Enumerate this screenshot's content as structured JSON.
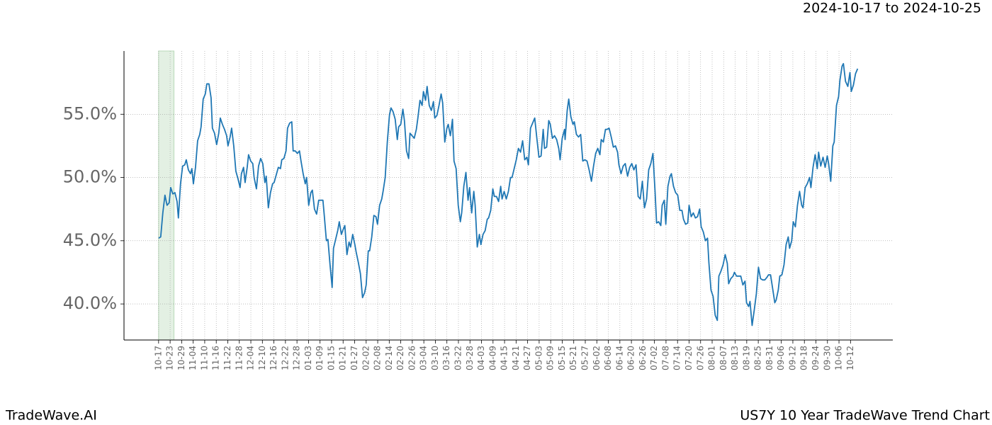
{
  "chart_data": {
    "type": "line",
    "title": "US7Y 10 Year TradeWave Trend Chart",
    "date_range": "2024-10-17 to 2024-10-25",
    "brand": "TradeWave.AI",
    "color": "#1f77b4",
    "shaded_span": [
      0,
      8
    ],
    "shaded_color": "#e3f0e3",
    "grid": true,
    "xlim": [
      -18,
      382
    ],
    "ylim": [
      37.15,
      60
    ],
    "yticks": [
      {
        "value": 40,
        "label": "40.0%"
      },
      {
        "value": 45,
        "label": "45.0%"
      },
      {
        "value": 50,
        "label": "50.0%"
      },
      {
        "value": 55,
        "label": "55.0%"
      }
    ],
    "xticks": [
      {
        "value": 0,
        "label": "10-17"
      },
      {
        "value": 6,
        "label": "10-23"
      },
      {
        "value": 12,
        "label": "10-29"
      },
      {
        "value": 18,
        "label": "11-04"
      },
      {
        "value": 24,
        "label": "11-10"
      },
      {
        "value": 30,
        "label": "11-16"
      },
      {
        "value": 36,
        "label": "11-22"
      },
      {
        "value": 42,
        "label": "11-28"
      },
      {
        "value": 48,
        "label": "12-04"
      },
      {
        "value": 54,
        "label": "12-10"
      },
      {
        "value": 60,
        "label": "12-16"
      },
      {
        "value": 66,
        "label": "12-22"
      },
      {
        "value": 72,
        "label": "12-28"
      },
      {
        "value": 78,
        "label": "01-03"
      },
      {
        "value": 84,
        "label": "01-09"
      },
      {
        "value": 90,
        "label": "01-15"
      },
      {
        "value": 96,
        "label": "01-21"
      },
      {
        "value": 102,
        "label": "01-27"
      },
      {
        "value": 108,
        "label": "02-02"
      },
      {
        "value": 114,
        "label": "02-08"
      },
      {
        "value": 120,
        "label": "02-14"
      },
      {
        "value": 126,
        "label": "02-20"
      },
      {
        "value": 132,
        "label": "02-26"
      },
      {
        "value": 138,
        "label": "03-04"
      },
      {
        "value": 144,
        "label": "03-10"
      },
      {
        "value": 150,
        "label": "03-16"
      },
      {
        "value": 156,
        "label": "03-22"
      },
      {
        "value": 162,
        "label": "03-28"
      },
      {
        "value": 168,
        "label": "04-03"
      },
      {
        "value": 174,
        "label": "04-09"
      },
      {
        "value": 180,
        "label": "04-15"
      },
      {
        "value": 186,
        "label": "04-21"
      },
      {
        "value": 192,
        "label": "04-27"
      },
      {
        "value": 198,
        "label": "05-03"
      },
      {
        "value": 204,
        "label": "05-09"
      },
      {
        "value": 210,
        "label": "05-15"
      },
      {
        "value": 216,
        "label": "05-21"
      },
      {
        "value": 222,
        "label": "05-27"
      },
      {
        "value": 228,
        "label": "06-02"
      },
      {
        "value": 234,
        "label": "06-08"
      },
      {
        "value": 240,
        "label": "06-14"
      },
      {
        "value": 246,
        "label": "06-20"
      },
      {
        "value": 252,
        "label": "06-26"
      },
      {
        "value": 258,
        "label": "07-02"
      },
      {
        "value": 264,
        "label": "07-08"
      },
      {
        "value": 270,
        "label": "07-14"
      },
      {
        "value": 276,
        "label": "07-20"
      },
      {
        "value": 282,
        "label": "07-26"
      },
      {
        "value": 288,
        "label": "08-01"
      },
      {
        "value": 294,
        "label": "08-07"
      },
      {
        "value": 300,
        "label": "08-13"
      },
      {
        "value": 306,
        "label": "08-19"
      },
      {
        "value": 312,
        "label": "08-25"
      },
      {
        "value": 318,
        "label": "08-31"
      },
      {
        "value": 324,
        "label": "09-06"
      },
      {
        "value": 330,
        "label": "09-12"
      },
      {
        "value": 336,
        "label": "09-18"
      },
      {
        "value": 342,
        "label": "09-24"
      },
      {
        "value": 348,
        "label": "09-30"
      },
      {
        "value": 354,
        "label": "10-06"
      },
      {
        "value": 360,
        "label": "10-12"
      }
    ],
    "x": [
      0,
      1.1,
      2.2,
      3.3,
      4.4,
      5.5,
      6.3,
      7.4,
      8.5,
      9.6,
      10.3,
      11.4,
      12.5,
      13.6,
      14.4,
      15.5,
      16.6,
      17.3,
      18.1,
      19.2,
      20.3,
      21.4,
      22.1,
      23.2,
      24.3,
      25.1,
      26.2,
      27.3,
      28.0,
      29.1,
      30.2,
      31.3,
      32.1,
      33.2,
      34.3,
      35.4,
      36.1,
      37.2,
      38.0,
      39.1,
      40.2,
      41.3,
      42.4,
      43.1,
      44.2,
      45.0,
      46.1,
      46.8,
      47.9,
      49.0,
      49.7,
      50.9,
      52.0,
      53.1,
      54.2,
      55.3,
      56.0,
      57.1,
      58.2,
      59.3,
      60.1,
      61.2,
      62.3,
      63.4,
      64.1,
      65.2,
      66.3,
      67.1,
      68.2,
      69.3,
      70.0,
      71.1,
      72.2,
      73.3,
      74.1,
      75.2,
      76.3,
      77.0,
      78.1,
      79.2,
      80.0,
      81.1,
      82.2,
      83.3,
      84.4,
      85.5,
      86.2,
      87.3,
      88.1,
      89.2,
      90.3,
      91.0,
      92.1,
      93.2,
      94.0,
      95.1,
      95.8,
      96.9,
      98.0,
      99.1,
      99.9,
      101.0,
      102.1,
      102.8,
      103.9,
      105.0,
      106.1,
      107.2,
      108.0,
      109.1,
      109.8,
      110.9,
      112.0,
      113.1,
      113.9,
      115.0,
      116.1,
      116.8,
      117.9,
      119.0,
      120.1,
      120.9,
      122.0,
      123.1,
      124.2,
      124.9,
      126.0,
      127.1,
      127.9,
      129.0,
      130.1,
      130.8,
      131.9,
      133.0,
      134.1,
      134.9,
      136.0,
      137.1,
      137.8,
      138.9,
      139.7,
      140.8,
      141.9,
      143.0,
      143.7,
      144.8,
      145.9,
      147.0,
      147.8,
      148.9,
      150.0,
      150.7,
      151.8,
      152.9,
      153.7,
      154.8,
      155.9,
      157.0,
      157.7,
      158.8,
      159.9,
      161.0,
      161.8,
      162.9,
      164.0,
      164.7,
      165.8,
      166.9,
      167.7,
      168.8,
      169.9,
      171.0,
      171.7,
      172.8,
      173.9,
      174.7,
      175.8,
      176.9,
      178.0,
      178.7,
      179.8,
      180.9,
      182.0,
      183.1,
      183.9,
      185.0,
      186.1,
      187.2,
      188.3,
      189.4,
      190.5,
      191.6,
      192.4,
      193.5,
      194.6,
      195.7,
      196.8,
      197.9,
      199.0,
      200.1,
      200.8,
      201.9,
      203.0,
      203.8,
      204.9,
      206.0,
      207.1,
      208.2,
      208.9,
      210.0,
      211.2,
      211.5,
      212.6,
      213.4,
      214.5,
      215.6,
      216.3,
      217.4,
      218.5,
      219.6,
      220.7,
      221.8,
      222.9,
      224.0,
      225.2,
      226.3,
      227.4,
      228.5,
      229.6,
      230.3,
      231.4,
      232.5,
      233.3,
      234.4,
      235.5,
      236.6,
      237.7,
      238.8,
      239.5,
      240.6,
      241.7,
      242.8,
      244.0,
      245.1,
      246.2,
      247.3,
      248.4,
      249.5,
      250.6,
      251.7,
      252.8,
      253.9,
      255.0,
      256.1,
      257.2,
      258.3,
      259.1,
      260.2,
      261.3,
      262.0,
      263.1,
      263.9,
      265.0,
      266.1,
      266.8,
      267.9,
      269.0,
      270.1,
      271.2,
      272.3,
      273.1,
      274.2,
      275.3,
      276.0,
      277.1,
      278.2,
      279.3,
      280.4,
      281.5,
      282.3,
      283.4,
      284.5,
      285.6,
      286.3,
      287.4,
      288.5,
      289.6,
      290.7,
      291.5,
      292.6,
      293.7,
      294.8,
      295.9,
      296.6,
      297.7,
      298.9,
      299.6,
      300.7,
      301.8,
      302.9,
      304.0,
      305.1,
      305.9,
      307.0,
      307.7,
      308.8,
      309.9,
      311.0,
      312.1,
      313.2,
      314.3,
      315.4,
      316.5,
      317.3,
      318.4,
      319.5,
      320.6,
      321.3,
      322.4,
      323.2,
      324.3,
      325.4,
      326.5,
      327.6,
      328.3,
      329.4,
      330.2,
      331.3,
      332.4,
      333.5,
      334.6,
      335.3,
      336.4,
      337.5,
      338.7,
      339.4,
      340.5,
      341.6,
      342.7,
      343.4,
      344.5,
      345.7,
      346.8,
      347.9,
      348.6,
      349.7,
      350.8,
      351.5,
      352.7,
      353.8,
      354.5,
      355.6,
      356.3,
      357.4,
      358.6,
      359.7,
      360.4,
      361.5,
      362.6,
      363.7
    ],
    "values": [
      45.2,
      45.3,
      47.2,
      48.6,
      47.8,
      48.0,
      49.2,
      48.7,
      48.8,
      48.1,
      46.8,
      49.5,
      50.9,
      51.0,
      51.4,
      50.6,
      50.3,
      50.7,
      49.5,
      50.8,
      52.9,
      53.4,
      54.0,
      56.2,
      56.6,
      57.4,
      57.4,
      56.3,
      53.9,
      53.5,
      52.6,
      53.5,
      54.7,
      54.2,
      53.8,
      53.3,
      52.5,
      53.2,
      53.9,
      52.5,
      50.5,
      49.9,
      49.2,
      50.3,
      50.8,
      49.6,
      50.8,
      51.8,
      51.3,
      51.1,
      50.0,
      49.1,
      50.9,
      51.5,
      51.1,
      49.6,
      50.1,
      47.6,
      48.8,
      49.5,
      49.6,
      50.2,
      50.8,
      50.7,
      51.4,
      51.5,
      52.1,
      53.9,
      54.3,
      54.4,
      52.1,
      52.1,
      51.9,
      52.1,
      51.3,
      50.3,
      49.5,
      50.0,
      47.8,
      48.8,
      49.0,
      47.5,
      47.1,
      48.2,
      48.2,
      48.2,
      47.0,
      45.0,
      45.1,
      43.1,
      41.3,
      44.4,
      45.1,
      45.8,
      46.5,
      45.5,
      45.8,
      46.2,
      43.9,
      44.9,
      44.5,
      45.5,
      44.7,
      44.1,
      43.3,
      42.4,
      40.5,
      40.9,
      41.5,
      44.2,
      44.2,
      45.3,
      47.0,
      46.9,
      46.3,
      47.8,
      48.3,
      48.9,
      50.0,
      52.8,
      54.9,
      55.5,
      55.2,
      54.6,
      53.0,
      54.0,
      54.2,
      55.4,
      54.5,
      52.1,
      51.5,
      53.5,
      53.3,
      53.1,
      53.8,
      54.7,
      56.1,
      55.7,
      56.8,
      56.1,
      57.2,
      55.7,
      55.3,
      56.0,
      54.7,
      54.9,
      55.7,
      56.6,
      55.9,
      52.8,
      53.9,
      54.2,
      53.3,
      54.6,
      51.3,
      50.7,
      47.8,
      46.5,
      47.2,
      49.3,
      50.4,
      48.2,
      49.2,
      47.2,
      48.9,
      47.8,
      44.5,
      45.5,
      44.7,
      45.5,
      45.8,
      46.7,
      46.8,
      47.4,
      49.1,
      48.5,
      48.5,
      48.1,
      49.3,
      48.3,
      48.9,
      48.3,
      48.9,
      50.0,
      50.0,
      50.7,
      51.4,
      52.3,
      52.0,
      52.9,
      51.4,
      51.6,
      51.0,
      53.9,
      54.3,
      54.7,
      53.1,
      51.6,
      51.7,
      53.8,
      52.3,
      52.4,
      54.5,
      54.2,
      53.1,
      53.3,
      53.0,
      52.3,
      51.4,
      53.1,
      53.8,
      53.0,
      55.3,
      56.2,
      54.8,
      54.2,
      54.4,
      53.4,
      53.2,
      53.4,
      51.3,
      51.4,
      51.3,
      50.6,
      49.7,
      50.9,
      51.9,
      52.3,
      51.8,
      53.0,
      52.8,
      53.8,
      53.8,
      53.9,
      53.2,
      52.4,
      52.5,
      52.0,
      51.0,
      50.3,
      50.9,
      51.1,
      50.1,
      50.8,
      51.1,
      50.6,
      51.0,
      48.5,
      48.3,
      49.7,
      47.6,
      48.3,
      50.6,
      51.1,
      51.9,
      48.9,
      46.4,
      46.5,
      46.2,
      47.8,
      48.2,
      46.3,
      49.3,
      50.1,
      50.3,
      49.3,
      48.8,
      48.6,
      47.4,
      47.4,
      46.7,
      46.3,
      46.4,
      47.8,
      46.9,
      47.2,
      46.8,
      46.9,
      47.5,
      46.1,
      45.7,
      45.0,
      45.2,
      43.3,
      41.1,
      40.6,
      39.1,
      38.7,
      42.2,
      42.6,
      43.1,
      43.9,
      43.2,
      41.6,
      42.0,
      42.2,
      42.5,
      42.2,
      42.2,
      42.2,
      41.5,
      41.8,
      40.1,
      39.8,
      40.2,
      38.3,
      39.5,
      40.8,
      42.9,
      42.0,
      41.9,
      41.9,
      42.1,
      42.3,
      42.3,
      41.2,
      40.1,
      40.3,
      41.1,
      42.2,
      42.3,
      43.1,
      44.7,
      45.3,
      44.4,
      45.0,
      46.5,
      46.1,
      47.8,
      48.9,
      47.8,
      47.6,
      49.2,
      49.5,
      50.0,
      49.2,
      50.8,
      51.8,
      50.7,
      52.0,
      50.9,
      51.6,
      50.8,
      51.7,
      51.1,
      49.7,
      52.5,
      52.8,
      55.7,
      56.4,
      57.7,
      58.8,
      59.0,
      57.6,
      57.2,
      58.3,
      56.8,
      57.3,
      58.2,
      58.6
    ]
  }
}
